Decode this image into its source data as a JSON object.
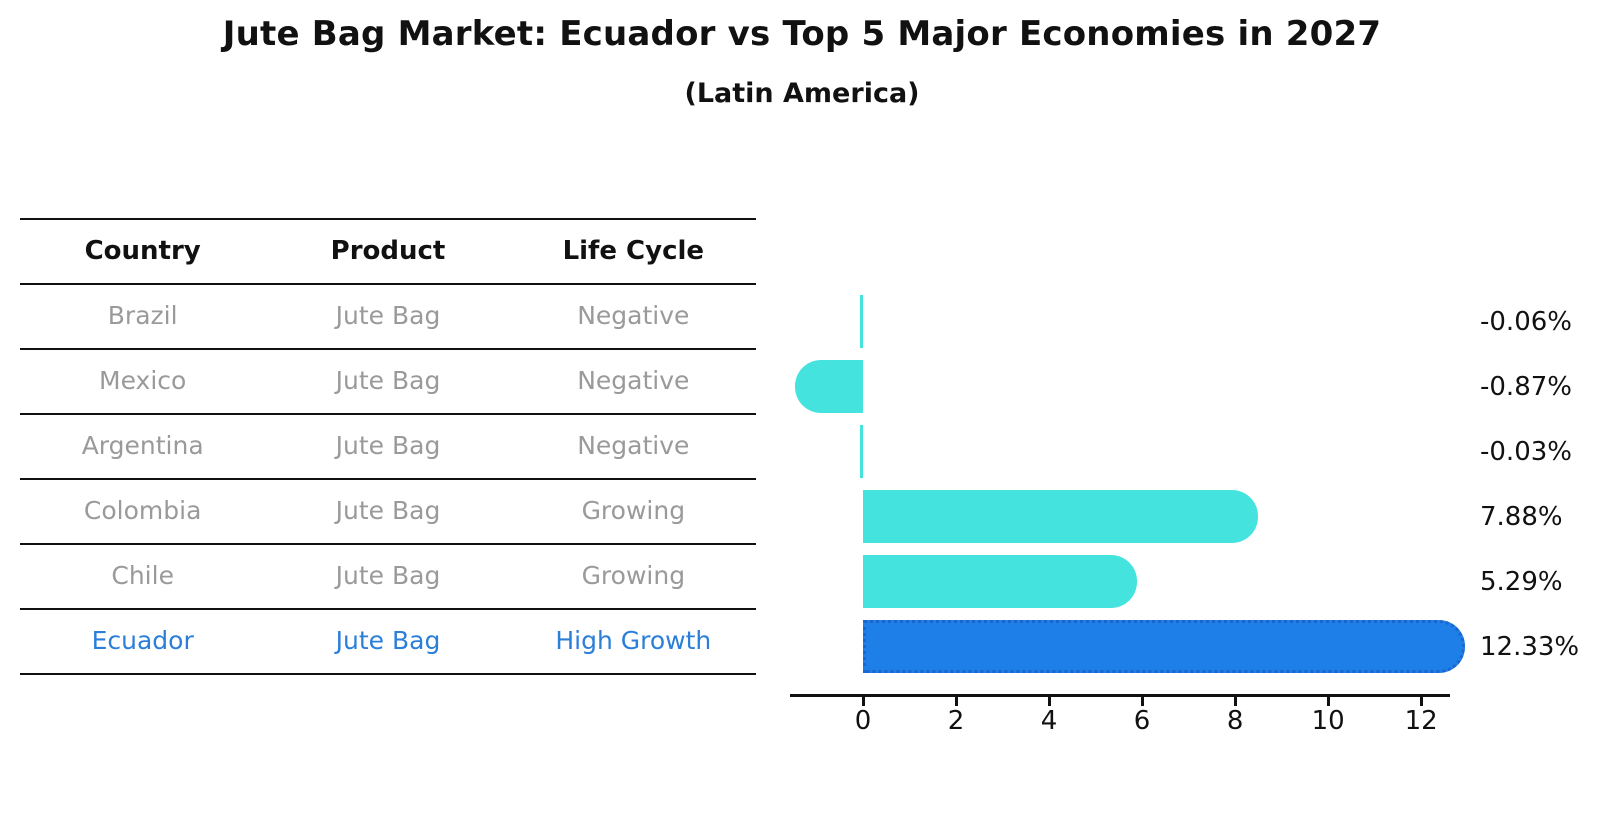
{
  "title": "Jute Bag Market: Ecuador vs Top 5 Major Economies in 2027",
  "subtitle": "(Latin America)",
  "table": {
    "headers": [
      "Country",
      "Product",
      "Life Cycle"
    ],
    "rows": [
      {
        "country": "Brazil",
        "product": "Jute Bag",
        "life_cycle": "Negative",
        "highlighted": false
      },
      {
        "country": "Mexico",
        "product": "Jute Bag",
        "life_cycle": "Negative",
        "highlighted": false
      },
      {
        "country": "Argentina",
        "product": "Jute Bag",
        "life_cycle": "Negative",
        "highlighted": false
      },
      {
        "country": "Colombia",
        "product": "Jute Bag",
        "life_cycle": "Growing",
        "highlighted": false
      },
      {
        "country": "Chile",
        "product": "Jute Bag",
        "life_cycle": "Growing",
        "highlighted": false
      },
      {
        "country": "Ecuador",
        "product": "Jute Bag",
        "life_cycle": "High Growth",
        "highlighted": true
      }
    ]
  },
  "chart_data": {
    "type": "bar",
    "orientation": "horizontal",
    "title": "Jute Bag Market: Ecuador vs Top 5 Major Economies in 2027",
    "subtitle": "(Latin America)",
    "categories": [
      "Brazil",
      "Mexico",
      "Argentina",
      "Colombia",
      "Chile",
      "Ecuador"
    ],
    "values": [
      -0.06,
      -0.87,
      -0.03,
      7.88,
      5.29,
      12.33
    ],
    "value_labels": [
      "-0.06%",
      "-0.87%",
      "-0.03%",
      "7.88%",
      "5.29%",
      "12.33%"
    ],
    "xtick_labels": [
      "0",
      "2",
      "4",
      "6",
      "8",
      "10",
      "12"
    ],
    "xtick_values": [
      0,
      2,
      4,
      6,
      8,
      10,
      12
    ],
    "xlim": [
      -1.57,
      12.62
    ],
    "highlight_index": 5,
    "grid": false,
    "legend": null,
    "bar_color": "#45e3de",
    "highlight_bar_color": "#1f7fe8",
    "highlight_border_color": "#1866ce"
  },
  "colors": {
    "background": "#ffffff",
    "header_text": "#111111",
    "row_text": "#9a9a9a",
    "highlight_text": "#2b7fd9",
    "axis": "#111111"
  }
}
